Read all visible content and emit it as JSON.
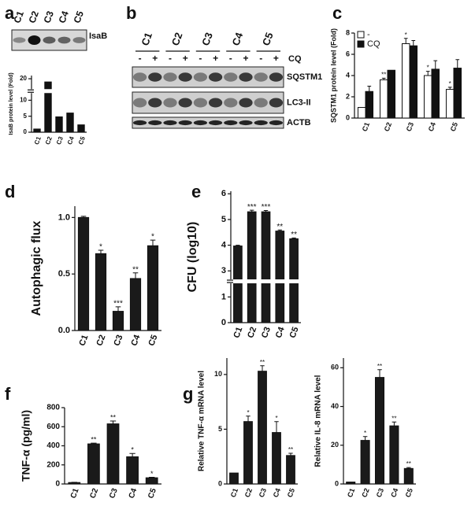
{
  "chart_data": [
    {
      "panel": "a",
      "type": "blot",
      "lanes": [
        "C1",
        "C2",
        "C3",
        "C4",
        "C5"
      ],
      "rows": [
        "IsaB"
      ]
    },
    {
      "type": "bar",
      "ylabel": "IsaB protein level (Fold)",
      "categories": [
        "C1",
        "C2",
        "C3",
        "C4",
        "C5"
      ],
      "values": [
        1,
        19,
        4.8,
        6,
        2.3
      ],
      "color": "#111111",
      "ylim": [
        0,
        21
      ],
      "yticks": [
        0,
        5,
        10,
        20
      ],
      "axis_break": [
        12,
        17
      ]
    },
    {
      "panel": "b",
      "type": "blot",
      "lanes": [
        "C1",
        "C2",
        "C3",
        "C4",
        "C5"
      ],
      "treatment": [
        "-",
        "+"
      ],
      "treatment_label": "CQ",
      "rows": [
        "SQSTM1",
        "LC3-II",
        "ACTB"
      ]
    },
    {
      "panel": "c",
      "type": "bar",
      "ylabel": "SQSTM1 protein level (Fold)",
      "categories": [
        "C1",
        "C2",
        "C3",
        "C4",
        "C5"
      ],
      "ylim": [
        0,
        8
      ],
      "yticks": [
        0,
        2,
        4,
        6,
        8
      ],
      "legend": "top-left",
      "series": [
        {
          "name": "-",
          "color": "#ffffff",
          "values": [
            1,
            3.6,
            7,
            4,
            2.7
          ],
          "errors": [
            0,
            0.15,
            0.5,
            0.4,
            0.2
          ],
          "annotations": [
            null,
            "**",
            "*",
            "*",
            "*"
          ]
        },
        {
          "name": "CQ",
          "color": "#111111",
          "values": [
            2.5,
            4.5,
            6.8,
            4.6,
            4.7
          ],
          "errors": [
            0.5,
            0,
            0.5,
            0.8,
            0.8
          ],
          "annotations": [
            null,
            null,
            null,
            null,
            null
          ]
        }
      ]
    },
    {
      "panel": "d",
      "type": "bar",
      "ylabel": "Autophagic flux",
      "categories": [
        "C1",
        "C2",
        "C3",
        "C4",
        "C5"
      ],
      "color": "#1a1a1a",
      "ylim": [
        0,
        1.1
      ],
      "yticks": [
        {
          "value": 0,
          "label": "0.0"
        },
        {
          "value": 0.5,
          "label": "0.5"
        },
        {
          "value": 1,
          "label": "1.0"
        }
      ],
      "values": [
        1.0,
        0.68,
        0.17,
        0.46,
        0.75
      ],
      "errors": [
        0.01,
        0.03,
        0.04,
        0.05,
        0.05
      ],
      "annotations": [
        null,
        "*",
        "***",
        "**",
        "*"
      ]
    },
    {
      "panel": "e",
      "type": "bar",
      "ylabel": "CFU (log10)",
      "categories": [
        "C1",
        "C2",
        "C3",
        "C4",
        "C5"
      ],
      "color": "#1a1a1a",
      "ylim": [
        0,
        6.1
      ],
      "yticks": [
        0,
        1,
        3,
        4,
        5,
        6
      ],
      "axis_break": [
        1.5,
        2.7
      ],
      "values": [
        3.97,
        5.3,
        5.3,
        4.55,
        4.25
      ],
      "errors": [
        0.03,
        0.06,
        0.05,
        0.04,
        0.03
      ],
      "annotations": [
        null,
        "***",
        "***",
        "**",
        "**"
      ]
    },
    {
      "panel": "f",
      "type": "bar",
      "ylabel": "TNF-α (pg/ml)",
      "categories": [
        "C1",
        "C2",
        "C3",
        "C4",
        "C5"
      ],
      "color": "#1a1a1a",
      "ylim": [
        0,
        800
      ],
      "yticks": [
        0,
        200,
        400,
        600,
        800
      ],
      "values": [
        15,
        420,
        630,
        285,
        65
      ],
      "errors": [
        3,
        8,
        30,
        35,
        5
      ],
      "annotations": [
        null,
        "**",
        "**",
        "*",
        "*"
      ]
    },
    {
      "panel": "g",
      "type": "bar",
      "ylabel": "Relative TNF-α mRNA level",
      "categories": [
        "C1",
        "C2",
        "C3",
        "C4",
        "C5"
      ],
      "color": "#1a1a1a",
      "ylim": [
        0,
        11.5
      ],
      "yticks": [
        0,
        5,
        10
      ],
      "values": [
        1,
        5.7,
        10.3,
        4.7,
        2.6
      ],
      "errors": [
        0,
        0.5,
        0.5,
        1.0,
        0.2
      ],
      "annotations": [
        null,
        "*",
        "**",
        "*",
        "**"
      ]
    },
    {
      "type": "bar",
      "ylabel": "Relative IL-8 mRNA level",
      "categories": [
        "C1",
        "C2",
        "C3",
        "C4",
        "C5"
      ],
      "color": "#1a1a1a",
      "ylim": [
        0,
        65
      ],
      "yticks": [
        0,
        20,
        40,
        60
      ],
      "values": [
        1,
        22.5,
        55,
        30,
        8
      ],
      "errors": [
        0,
        2,
        4,
        2,
        0.5
      ],
      "annotations": [
        null,
        "*",
        "**",
        "**",
        "**"
      ]
    }
  ]
}
